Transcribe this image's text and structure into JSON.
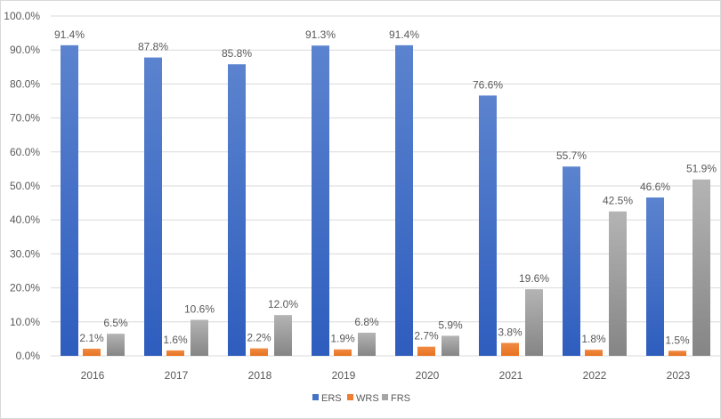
{
  "chart_data": {
    "type": "bar",
    "title": "",
    "xlabel": "",
    "ylabel": "",
    "ylim": [
      0,
      100
    ],
    "y_ticks": [
      "0.0%",
      "10.0%",
      "20.0%",
      "30.0%",
      "40.0%",
      "50.0%",
      "60.0%",
      "70.0%",
      "80.0%",
      "90.0%",
      "100.0%"
    ],
    "grid": true,
    "legend_position": "bottom",
    "categories": [
      "2016",
      "2017",
      "2018",
      "2019",
      "2020",
      "2021",
      "2022",
      "2023"
    ],
    "series": [
      {
        "name": "ERS",
        "color": "#4472C4",
        "values": [
          91.4,
          87.8,
          85.8,
          91.3,
          91.4,
          76.6,
          55.7,
          46.6
        ],
        "labels": [
          "91.4%",
          "87.8%",
          "85.8%",
          "91.3%",
          "91.4%",
          "76.6%",
          "55.7%",
          "46.6%"
        ]
      },
      {
        "name": "WRS",
        "color": "#ED7D31",
        "values": [
          2.1,
          1.6,
          2.2,
          1.9,
          2.7,
          3.8,
          1.8,
          1.5
        ],
        "labels": [
          "2.1%",
          "1.6%",
          "2.2%",
          "1.9%",
          "2.7%",
          "3.8%",
          "1.8%",
          "1.5%"
        ]
      },
      {
        "name": "FRS",
        "color": "#A5A5A5",
        "values": [
          6.5,
          10.6,
          12.0,
          6.8,
          5.9,
          19.6,
          42.5,
          51.9
        ],
        "labels": [
          "6.5%",
          "10.6%",
          "12.0%",
          "6.8%",
          "5.9%",
          "19.6%",
          "42.5%",
          "51.9%"
        ]
      }
    ]
  }
}
